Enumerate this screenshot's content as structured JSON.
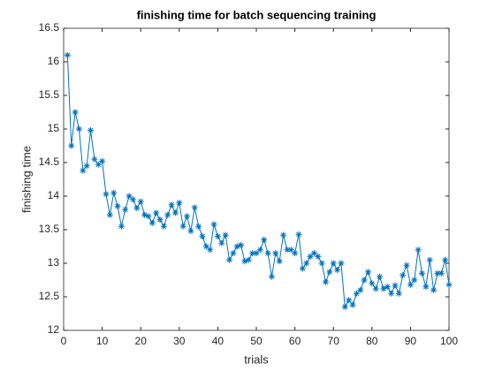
{
  "chart_data": {
    "type": "line",
    "title": "finishing time for batch sequencing training",
    "x_label": "trials",
    "y_label": "finishing time",
    "x": [
      1,
      2,
      3,
      4,
      5,
      6,
      7,
      8,
      9,
      10,
      11,
      12,
      13,
      14,
      15,
      16,
      17,
      18,
      19,
      20,
      21,
      22,
      23,
      24,
      25,
      26,
      27,
      28,
      29,
      30,
      31,
      32,
      33,
      34,
      35,
      36,
      37,
      38,
      39,
      40,
      41,
      42,
      43,
      44,
      45,
      46,
      47,
      48,
      49,
      50,
      51,
      52,
      53,
      54,
      55,
      56,
      57,
      58,
      59,
      60,
      61,
      62,
      63,
      64,
      65,
      66,
      67,
      68,
      69,
      70,
      71,
      72,
      73,
      74,
      75,
      76,
      77,
      78,
      79,
      80,
      81,
      82,
      83,
      84,
      85,
      86,
      87,
      88,
      89,
      90,
      91,
      92,
      93,
      94,
      95,
      96,
      97,
      98,
      99,
      100
    ],
    "values": [
      16.1,
      14.75,
      15.25,
      15.0,
      14.38,
      14.45,
      14.98,
      14.55,
      14.47,
      14.52,
      14.03,
      13.72,
      14.05,
      13.85,
      13.55,
      13.8,
      14.0,
      13.95,
      13.82,
      13.92,
      13.72,
      13.7,
      13.6,
      13.75,
      13.65,
      13.55,
      13.72,
      13.87,
      13.75,
      13.9,
      13.55,
      13.7,
      13.48,
      13.83,
      13.55,
      13.4,
      13.25,
      13.2,
      13.58,
      13.4,
      13.3,
      13.42,
      13.05,
      13.15,
      13.25,
      13.27,
      13.03,
      13.05,
      13.15,
      13.15,
      13.2,
      13.35,
      13.15,
      12.8,
      13.15,
      13.03,
      13.42,
      13.2,
      13.2,
      13.15,
      13.43,
      12.92,
      13.0,
      13.1,
      13.15,
      13.1,
      13.0,
      12.72,
      12.87,
      13.0,
      12.9,
      13.0,
      12.35,
      12.45,
      12.38,
      12.55,
      12.6,
      12.75,
      12.87,
      12.7,
      12.62,
      12.8,
      12.62,
      12.65,
      12.55,
      12.67,
      12.55,
      12.82,
      12.97,
      12.68,
      12.75,
      13.2,
      12.85,
      12.65,
      13.05,
      12.6,
      12.85,
      12.85,
      13.05,
      12.68
    ],
    "color": "#0072bd",
    "marker": "*",
    "xlim": [
      0,
      100
    ],
    "xticks": [
      0,
      10,
      20,
      30,
      40,
      50,
      60,
      70,
      80,
      90,
      100
    ],
    "ylim": [
      12,
      16.5
    ],
    "yticks": [
      12,
      12.5,
      13,
      13.5,
      14,
      14.5,
      15,
      15.5,
      16,
      16.5
    ]
  }
}
